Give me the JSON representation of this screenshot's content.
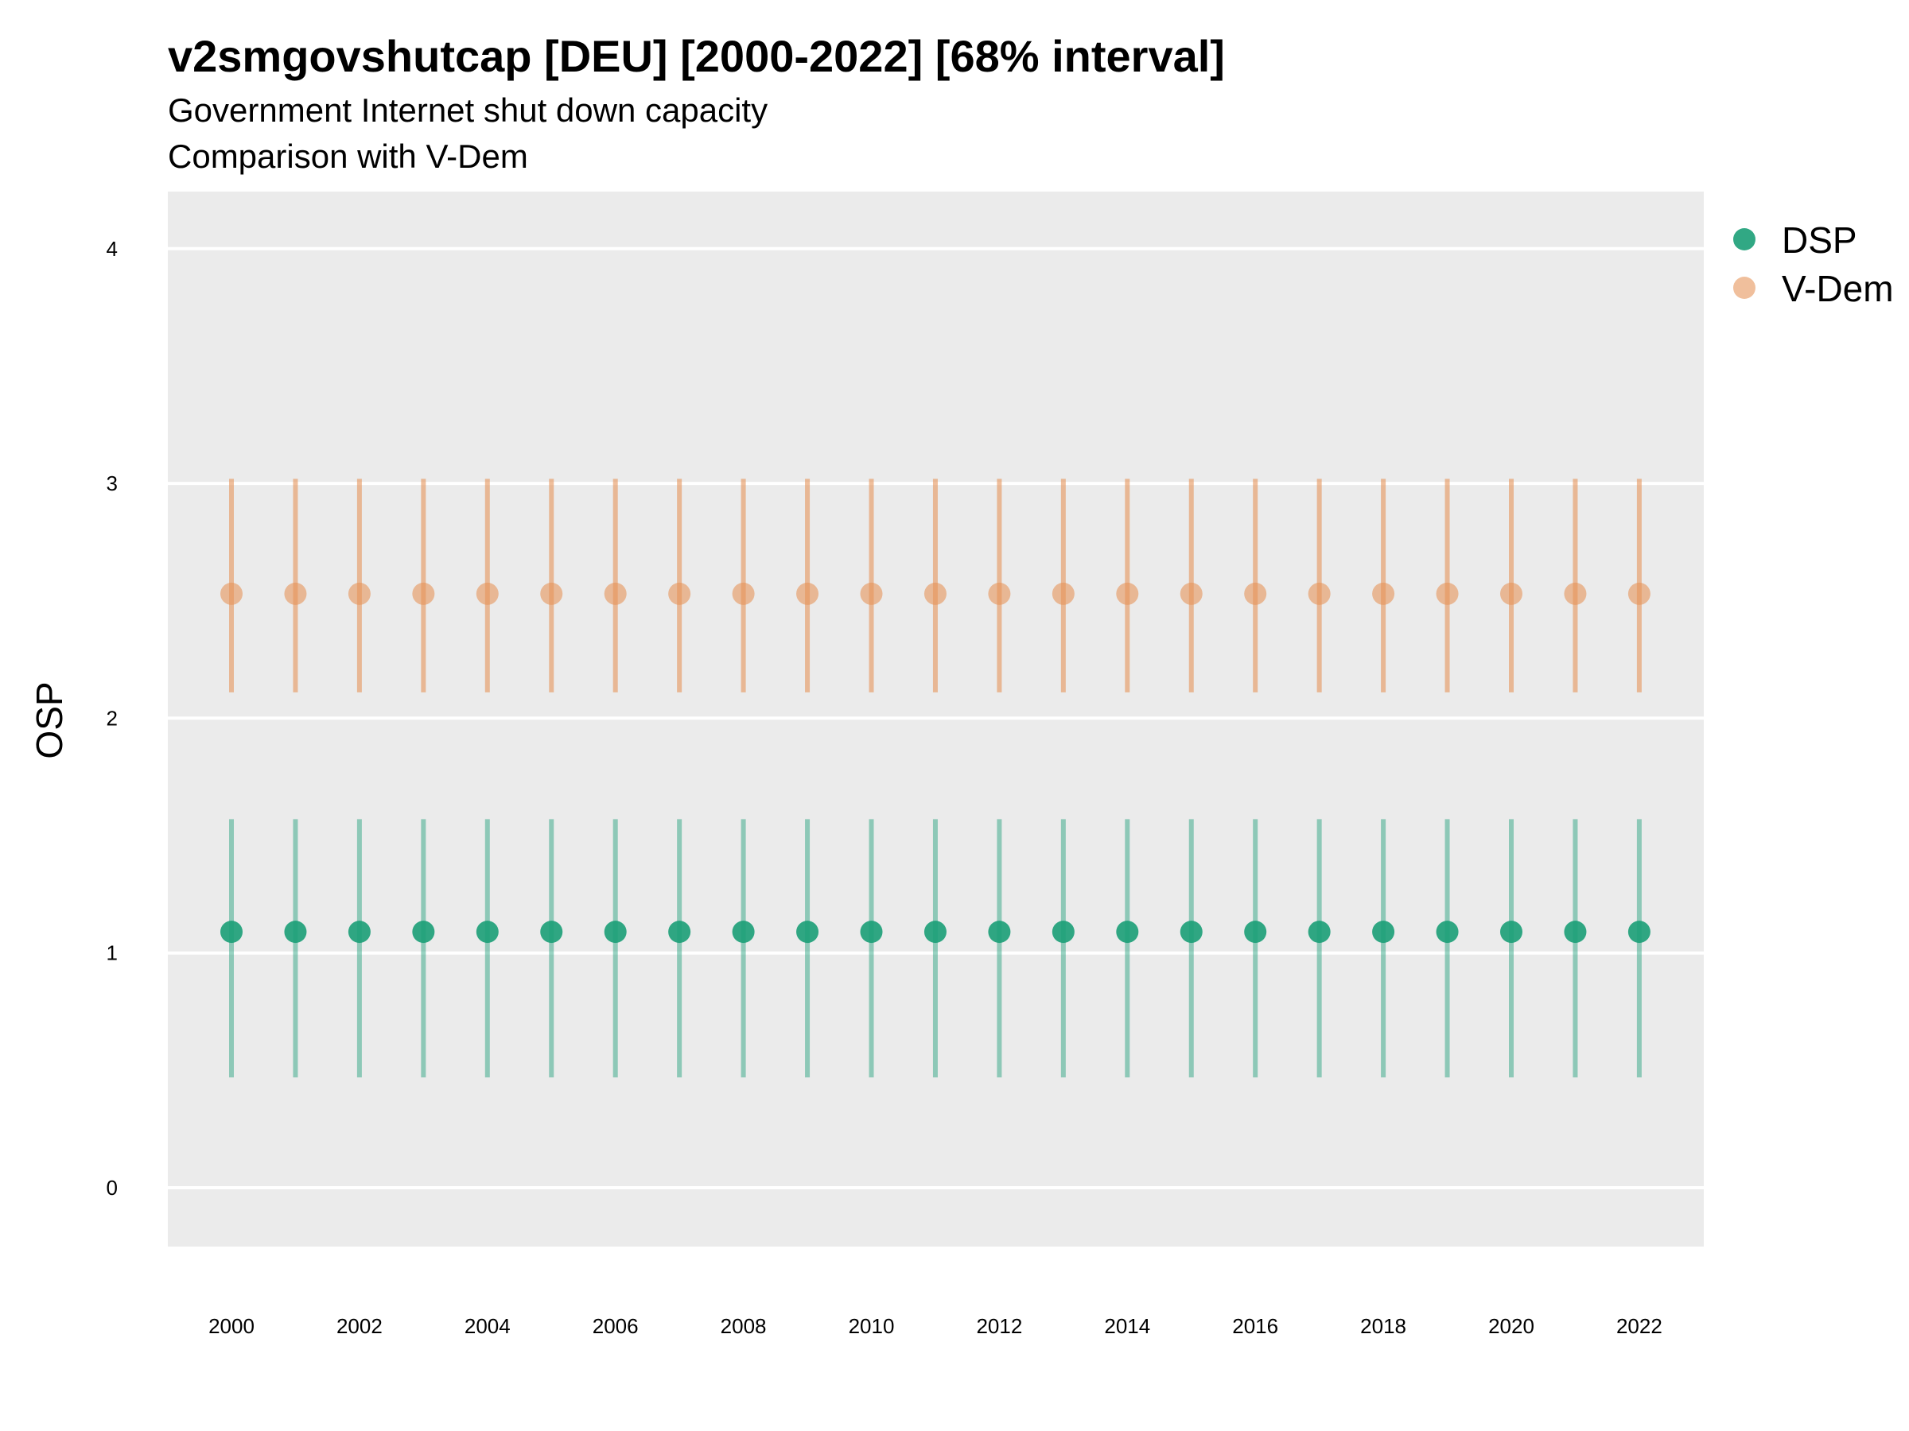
{
  "chart_data": {
    "type": "scatter",
    "title": "v2smgovshutcap [DEU] [2000-2022] [68% interval]",
    "subtitle": "Government Internet shut down capacity",
    "subtitle2": "Comparison with V-Dem",
    "xlabel": "",
    "ylabel": "OSP",
    "ylim": [
      -0.25,
      4.25
    ],
    "xlim": [
      1999,
      2023
    ],
    "y_ticks": [
      "0",
      "1",
      "2",
      "3",
      "4"
    ],
    "x_ticks": [
      "2000",
      "2002",
      "2004",
      "2006",
      "2008",
      "2010",
      "2012",
      "2014",
      "2016",
      "2018",
      "2020",
      "2022"
    ],
    "grid": true,
    "legend_position": "right",
    "x": [
      2000,
      2001,
      2002,
      2003,
      2004,
      2005,
      2006,
      2007,
      2008,
      2009,
      2010,
      2011,
      2012,
      2013,
      2014,
      2015,
      2016,
      2017,
      2018,
      2019,
      2020,
      2021,
      2022
    ],
    "series": [
      {
        "name": "DSP",
        "color": "#1b9e77",
        "values": [
          1.09,
          1.09,
          1.09,
          1.09,
          1.09,
          1.09,
          1.09,
          1.09,
          1.09,
          1.09,
          1.09,
          1.09,
          1.09,
          1.09,
          1.09,
          1.09,
          1.09,
          1.09,
          1.09,
          1.09,
          1.09,
          1.09,
          1.09
        ],
        "lower": [
          0.47,
          0.47,
          0.47,
          0.47,
          0.47,
          0.47,
          0.47,
          0.47,
          0.47,
          0.47,
          0.47,
          0.47,
          0.47,
          0.47,
          0.47,
          0.47,
          0.47,
          0.47,
          0.47,
          0.47,
          0.47,
          0.47,
          0.47
        ],
        "upper": [
          1.57,
          1.57,
          1.57,
          1.57,
          1.57,
          1.57,
          1.57,
          1.57,
          1.57,
          1.57,
          1.57,
          1.57,
          1.57,
          1.57,
          1.57,
          1.57,
          1.57,
          1.57,
          1.57,
          1.57,
          1.57,
          1.57,
          1.57
        ]
      },
      {
        "name": "V-Dem",
        "color": "#e6955a",
        "values": [
          2.53,
          2.53,
          2.53,
          2.53,
          2.53,
          2.53,
          2.53,
          2.53,
          2.53,
          2.53,
          2.53,
          2.53,
          2.53,
          2.53,
          2.53,
          2.53,
          2.53,
          2.53,
          2.53,
          2.53,
          2.53,
          2.53,
          2.53
        ],
        "lower": [
          2.11,
          2.11,
          2.11,
          2.11,
          2.11,
          2.11,
          2.11,
          2.11,
          2.11,
          2.11,
          2.11,
          2.11,
          2.11,
          2.11,
          2.11,
          2.11,
          2.11,
          2.11,
          2.11,
          2.11,
          2.11,
          2.11,
          2.11
        ],
        "upper": [
          3.02,
          3.02,
          3.02,
          3.02,
          3.02,
          3.02,
          3.02,
          3.02,
          3.02,
          3.02,
          3.02,
          3.02,
          3.02,
          3.02,
          3.02,
          3.02,
          3.02,
          3.02,
          3.02,
          3.02,
          3.02,
          3.02,
          3.02
        ]
      }
    ]
  }
}
